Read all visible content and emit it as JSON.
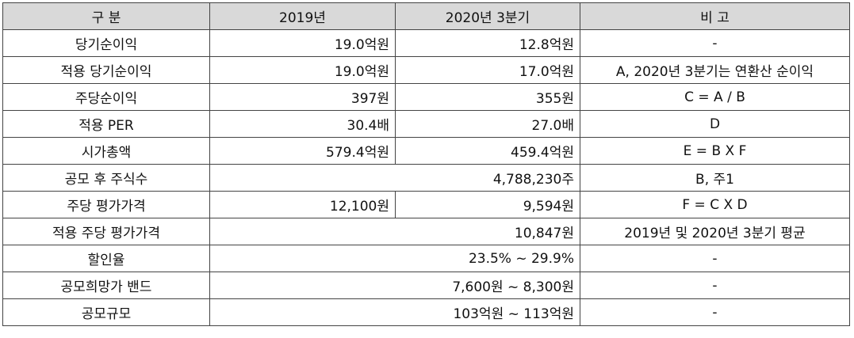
{
  "header": {
    "category": "구  분",
    "y2019": "2019년",
    "y2020q3": "2020년 3분기",
    "note": "비  고"
  },
  "rows": [
    {
      "label": "당기순이익",
      "v2019": "19.0억원",
      "v2020": "12.8억원",
      "note": "-"
    },
    {
      "label": "적용 당기순이익",
      "v2019": "19.0억원",
      "v2020": "17.0억원",
      "note": "A, 2020년 3분기는 연환산 순이익"
    },
    {
      "label": "주당순이익",
      "v2019": "397원",
      "v2020": "355원",
      "note": "C = A / B"
    },
    {
      "label": "적용 PER",
      "v2019": "30.4배",
      "v2020": "27.0배",
      "note": "D"
    },
    {
      "label": "시가총액",
      "v2019": "579.4억원",
      "v2020": "459.4억원",
      "note": "E = B X F"
    },
    {
      "label": "공모 후 주식수",
      "merged": "4,788,230주",
      "note": "B, 주1"
    },
    {
      "label": "주당 평가가격",
      "v2019": "12,100원",
      "v2020": "9,594원",
      "note": "F = C X D"
    },
    {
      "label": "적용 주당 평가가격",
      "merged": "10,847원",
      "note": "2019년 및 2020년 3분기 평균"
    },
    {
      "label": "할인율",
      "merged": "23.5% ~ 29.9%",
      "note": "-"
    },
    {
      "label": "공모희망가 밴드",
      "merged": "7,600원 ~ 8,300원",
      "note": "-"
    },
    {
      "label": "공모규모",
      "merged": "103억원 ~ 113억원",
      "note": "-"
    }
  ]
}
